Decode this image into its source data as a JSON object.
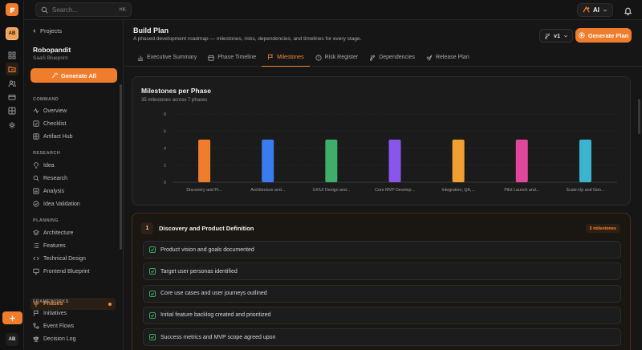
{
  "rail": {
    "avatar_initials": "AB",
    "bottom_avatar_initials": "AB"
  },
  "topbar": {
    "search_placeholder": "Search...",
    "search_shortcut": "⌘K",
    "ai_label": "AI"
  },
  "sidebar": {
    "back_label": "Projects",
    "project_name": "Robopandit",
    "project_subtitle": "SaaS Blueprint",
    "generate_all_label": "Generate All",
    "sections": [
      {
        "title": "COMMAND",
        "items": [
          {
            "label": "Overview",
            "icon": "activity-icon"
          },
          {
            "label": "Checklist",
            "icon": "checkbox-icon"
          },
          {
            "label": "Artifact Hub",
            "icon": "grid-icon"
          }
        ]
      },
      {
        "title": "RESEARCH",
        "items": [
          {
            "label": "Idea",
            "icon": "lightbulb-icon"
          },
          {
            "label": "Research",
            "icon": "search-icon"
          },
          {
            "label": "Analysis",
            "icon": "bar-chart-icon"
          },
          {
            "label": "Idea Validation",
            "icon": "badge-check-icon"
          }
        ]
      },
      {
        "title": "PLANNING",
        "items": [
          {
            "label": "Architecture",
            "icon": "layers-icon"
          },
          {
            "label": "Features",
            "icon": "list-icon"
          },
          {
            "label": "Technical Design",
            "icon": "code-icon"
          },
          {
            "label": "Frontend Blueprint",
            "icon": "monitor-icon"
          },
          {
            "label": "Phases",
            "icon": "signpost-icon",
            "active": true
          }
        ]
      },
      {
        "title": "FRAMEWORKS",
        "items": [
          {
            "label": "Initiatives",
            "icon": "flag-icon"
          },
          {
            "label": "Event Flows",
            "icon": "workflow-icon"
          },
          {
            "label": "Decision Log",
            "icon": "scale-icon"
          }
        ]
      }
    ]
  },
  "header": {
    "title": "Build Plan",
    "subtitle": "A phased development roadmap — milestones, risks, dependencies, and timelines for every stage.",
    "version_label": "v1",
    "generate_plan_label": "Generate Plan"
  },
  "tabs": [
    {
      "label": "Executive Summary",
      "icon": "bar-chart-icon"
    },
    {
      "label": "Phase Timeline",
      "icon": "calendar-icon"
    },
    {
      "label": "Milestones",
      "icon": "flag-icon",
      "active": true
    },
    {
      "label": "Risk Register",
      "icon": "alert-circle-icon"
    },
    {
      "label": "Dependencies",
      "icon": "git-branch-icon"
    },
    {
      "label": "Release Plan",
      "icon": "rocket-icon"
    }
  ],
  "chart_card": {
    "title": "Milestones per Phase",
    "subtitle": "35 milestones across 7 phases"
  },
  "chart_data": {
    "type": "bar",
    "categories": [
      "Discovery and Pr...",
      "Architecture and...",
      "UX/UI Design and...",
      "Core MVP Develop...",
      "Integration, QA,...",
      "Pilot Launch and...",
      "Scale-Up and Gen..."
    ],
    "values": [
      5,
      5,
      5,
      5,
      5,
      5,
      5
    ],
    "colors": [
      "#f07d2c",
      "#3b7bf0",
      "#3fae6a",
      "#8a55ea",
      "#f0a030",
      "#e0479a",
      "#3bb4d0"
    ],
    "ylim": [
      0,
      8
    ],
    "yticks": [
      "0",
      "2",
      "4",
      "6",
      "8"
    ],
    "grid": true
  },
  "phase": {
    "number": "1",
    "title": "Discovery and Product Definition",
    "count_label": "5 milestones",
    "milestones": [
      "Product vision and goals documented",
      "Target user personas identified",
      "Core use cases and user journeys outlined",
      "Initial feature backlog created and prioritized",
      "Success metrics and MVP scope agreed upon"
    ]
  },
  "colors": {
    "accent": "#f07d2c",
    "success": "#3fae6a"
  }
}
